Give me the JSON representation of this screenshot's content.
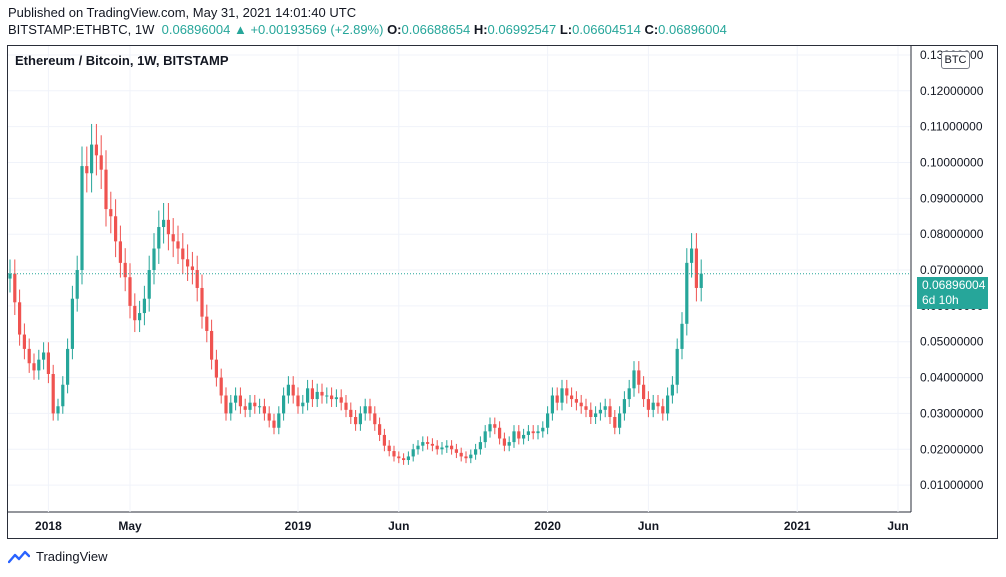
{
  "header": {
    "published": "Published on TradingView.com, May 31, 2021 14:01:40 UTC",
    "symbol": "BITSTAMP:ETHBTC, 1W",
    "last": "0.06896004",
    "change": "+0.00193569 (+2.89%)",
    "o_label": "O:",
    "o_value": "0.06688654",
    "h_label": "H:",
    "h_value": "0.06992547",
    "l_label": "L:",
    "l_value": "0.06604514",
    "c_label": "C:",
    "c_value": "0.06896004"
  },
  "legend_title": "Ethereum / Bitcoin, 1W, BITSTAMP",
  "currency_badge": "BTC",
  "current_price": {
    "value": "0.06896004",
    "countdown": "6d 10h"
  },
  "footer": {
    "brand": "TradingView"
  },
  "colors": {
    "up": "#26a69a",
    "down": "#ef5350",
    "grid": "#f0f3fa",
    "axis_text": "#131722"
  },
  "chart_data": {
    "type": "candlestick",
    "title": "Ethereum / Bitcoin, 1W, BITSTAMP",
    "unit": "BTC",
    "ylim": [
      0.0025,
      0.1325
    ],
    "y_ticks": [
      "0.01000000",
      "0.02000000",
      "0.03000000",
      "0.04000000",
      "0.05000000",
      "0.06000000",
      "0.07000000",
      "0.08000000",
      "0.09000000",
      "0.10000000",
      "0.11000000",
      "0.12000000",
      "0.13000000"
    ],
    "x_ticks": [
      {
        "label": "2018",
        "week": 8
      },
      {
        "label": "May",
        "week": 25
      },
      {
        "label": "2019",
        "week": 60
      },
      {
        "label": "Jun",
        "week": 81
      },
      {
        "label": "2020",
        "week": 112
      },
      {
        "label": "Jun",
        "week": 133
      },
      {
        "label": "2021",
        "week": 164
      },
      {
        "label": "Jun",
        "week": 185
      }
    ],
    "grid": true,
    "last_close": 0.06896004,
    "close": [
      0.069,
      0.061,
      0.052,
      0.048,
      0.044,
      0.042,
      0.045,
      0.047,
      0.041,
      0.03,
      0.032,
      0.038,
      0.048,
      0.062,
      0.07,
      0.099,
      0.097,
      0.105,
      0.102,
      0.098,
      0.087,
      0.085,
      0.078,
      0.072,
      0.068,
      0.06,
      0.056,
      0.058,
      0.062,
      0.07,
      0.076,
      0.082,
      0.084,
      0.08,
      0.078,
      0.076,
      0.073,
      0.071,
      0.07,
      0.065,
      0.057,
      0.053,
      0.045,
      0.04,
      0.035,
      0.03,
      0.033,
      0.035,
      0.032,
      0.031,
      0.033,
      0.032,
      0.032,
      0.03,
      0.028,
      0.026,
      0.03,
      0.035,
      0.038,
      0.035,
      0.032,
      0.033,
      0.037,
      0.034,
      0.036,
      0.035,
      0.035,
      0.034,
      0.0345,
      0.033,
      0.031,
      0.029,
      0.027,
      0.03,
      0.032,
      0.03,
      0.027,
      0.024,
      0.021,
      0.0195,
      0.018,
      0.0175,
      0.017,
      0.018,
      0.02,
      0.021,
      0.022,
      0.0215,
      0.021,
      0.02,
      0.0205,
      0.021,
      0.02,
      0.019,
      0.018,
      0.0175,
      0.0185,
      0.02,
      0.022,
      0.025,
      0.027,
      0.026,
      0.023,
      0.021,
      0.022,
      0.025,
      0.023,
      0.024,
      0.025,
      0.0245,
      0.025,
      0.026,
      0.03,
      0.035,
      0.033,
      0.037,
      0.035,
      0.034,
      0.033,
      0.032,
      0.031,
      0.029,
      0.03,
      0.031,
      0.032,
      0.029,
      0.026,
      0.03,
      0.034,
      0.037,
      0.042,
      0.038,
      0.034,
      0.031,
      0.033,
      0.032,
      0.03,
      0.035,
      0.038,
      0.048,
      0.055,
      0.072,
      0.076,
      0.065,
      0.069
    ],
    "series": [
      {
        "name": "ETHBTC",
        "kind": "ohlc"
      }
    ]
  }
}
